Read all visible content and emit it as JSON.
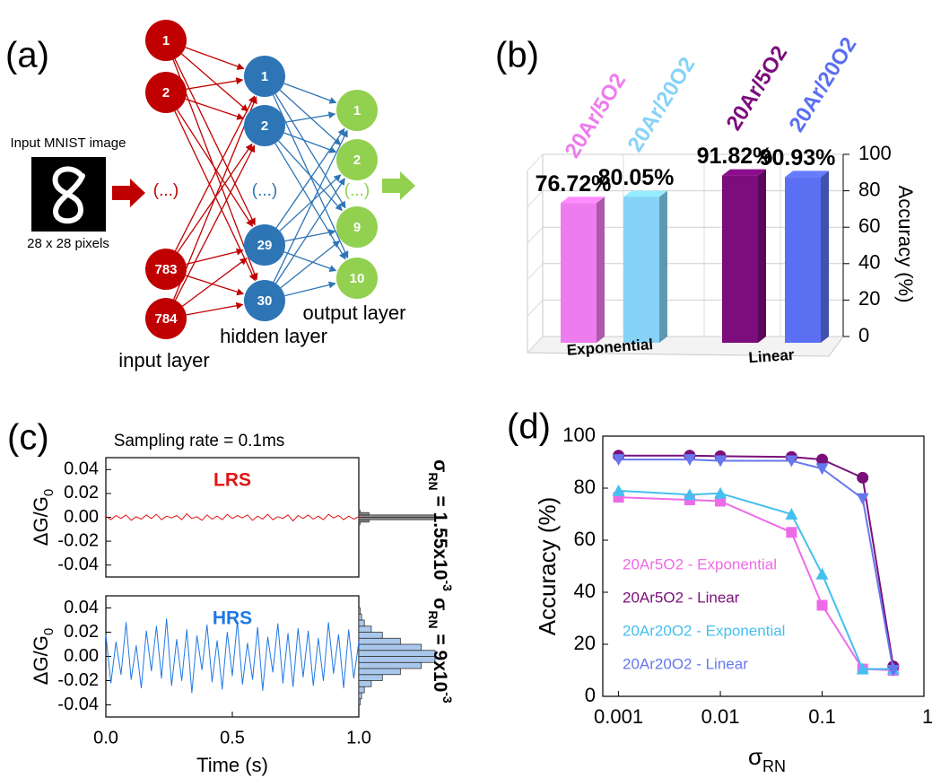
{
  "diagram": {
    "label": "(a)",
    "input_caption": "Input MNIST image",
    "pixel_caption": "28 x 28 pixels",
    "ellipsis": "(...)",
    "input_layer": {
      "name": "input layer",
      "nodes": [
        "1",
        "2",
        "783",
        "784"
      ]
    },
    "hidden_layer": {
      "name": "hidden layer",
      "nodes": [
        "1",
        "2",
        "29",
        "30"
      ]
    },
    "output_layer": {
      "name": "output layer",
      "nodes": [
        "1",
        "2",
        "9",
        "10"
      ]
    }
  },
  "chart_data": [
    {
      "type": "bar",
      "label": "(b)",
      "categories": [
        "20Ar/5O2",
        "20Ar/20O2",
        "20Ar/5O2",
        "20Ar/20O2"
      ],
      "colors": [
        "#ee7cee",
        "#86d3f7",
        "#7d0c7d",
        "#5b6ff2"
      ],
      "values": [
        76.72,
        80.05,
        91.82,
        90.93
      ],
      "value_labels": [
        "76.72%",
        "80.05%",
        "91.82%",
        "90.93%"
      ],
      "groups": [
        "Exponential",
        "Linear"
      ],
      "ylabel": "Accuracy (%)",
      "ylim": [
        0,
        100
      ],
      "yticks": [
        0,
        20,
        40,
        60,
        80,
        100
      ],
      "grid": true
    },
    {
      "type": "line",
      "label": "(c)",
      "subtitle": "Sampling rate = 0.1ms",
      "ylabel": {
        "text": "ΔG/G",
        "sub": "0"
      },
      "stat_label": {
        "symbol": "σ",
        "sub": "RN",
        "text": " = 1.55x10",
        "sup": "-3"
      },
      "x": [
        0,
        0.02,
        0.04,
        0.06,
        0.08,
        0.1,
        0.12,
        0.14,
        0.16,
        0.18,
        0.2,
        0.22,
        0.24,
        0.26,
        0.28,
        0.3,
        0.32,
        0.34,
        0.36,
        0.38,
        0.4,
        0.42,
        0.44,
        0.46,
        0.48,
        0.5,
        0.52,
        0.54,
        0.56,
        0.58,
        0.6,
        0.62,
        0.64,
        0.66,
        0.68,
        0.7,
        0.72,
        0.74,
        0.76,
        0.78,
        0.8,
        0.82,
        0.84,
        0.86,
        0.88,
        0.9,
        0.92,
        0.94,
        0.96,
        0.98,
        1
      ],
      "series": [
        {
          "name": "LRS",
          "color": "#e31414",
          "values": [
            0.001,
            -0.002,
            0.0015,
            -0.001,
            0.002,
            -0.0025,
            0.0005,
            -0.0015,
            0.002,
            -0.001,
            0.0025,
            -0.002,
            0.001,
            -0.0005,
            0.0015,
            -0.002,
            0.003,
            -0.001,
            0.0005,
            -0.0025,
            0.002,
            -0.0015,
            0.001,
            -0.002,
            0.0025,
            -0.001,
            0.0015,
            -0.0005,
            0.002,
            -0.0025,
            0.001,
            -0.0015,
            0.0025,
            -0.002,
            0.0005,
            -0.001,
            0.002,
            -0.003,
            0.0015,
            -0.001,
            0.002,
            -0.0015,
            0.001,
            -0.002,
            0.0025,
            -0.0005,
            0.0015,
            -0.002,
            0.001,
            -0.0015,
            0.0005
          ]
        }
      ],
      "hist": {
        "color": "#8a8a8a",
        "bins": [
          -0.008,
          -0.006,
          -0.004,
          -0.002,
          0,
          0.002,
          0.004,
          0.006,
          0.008
        ],
        "counts": [
          0,
          1,
          8,
          60,
          60,
          8,
          1,
          0
        ]
      },
      "xlim": [
        0,
        1
      ],
      "ylim": [
        -0.05,
        0.05
      ],
      "yticks": [
        -0.04,
        -0.02,
        {
          "value": 0,
          "label": "0.00"
        },
        0.02,
        0.04
      ]
    },
    {
      "type": "line",
      "ylabel": {
        "text": "ΔG/G",
        "sub": "0"
      },
      "stat_label": {
        "symbol": "σ",
        "sub": "RN",
        "text": " = 9x10",
        "sup": "-3"
      },
      "x": [
        0,
        0.02,
        0.04,
        0.06,
        0.08,
        0.1,
        0.12,
        0.14,
        0.16,
        0.18,
        0.2,
        0.22,
        0.24,
        0.26,
        0.28,
        0.3,
        0.32,
        0.34,
        0.36,
        0.38,
        0.4,
        0.42,
        0.44,
        0.46,
        0.48,
        0.5,
        0.52,
        0.54,
        0.56,
        0.58,
        0.6,
        0.62,
        0.64,
        0.66,
        0.68,
        0.7,
        0.72,
        0.74,
        0.76,
        0.78,
        0.8,
        0.82,
        0.84,
        0.86,
        0.88,
        0.9,
        0.92,
        0.94,
        0.96,
        0.98,
        1
      ],
      "series": [
        {
          "name": "HRS",
          "color": "#1f78e4",
          "values": [
            0.018,
            -0.022,
            0.012,
            -0.015,
            0.028,
            -0.019,
            0.009,
            -0.026,
            0.021,
            -0.012,
            0.025,
            -0.018,
            0.031,
            -0.024,
            0.014,
            -0.02,
            0.022,
            -0.03,
            0.017,
            -0.011,
            0.026,
            -0.021,
            0.013,
            -0.027,
            0.02,
            -0.016,
            0.029,
            -0.023,
            0.011,
            -0.019,
            0.024,
            -0.028,
            0.016,
            -0.013,
            0.027,
            -0.022,
            0.019,
            -0.025,
            0.023,
            -0.017,
            0.021,
            -0.024,
            0.015,
            -0.02,
            0.028,
            -0.014,
            0.018,
            -0.026,
            0.022,
            -0.018,
            0.012
          ]
        }
      ],
      "hist": {
        "color": "#a9c8ec",
        "bins": [
          -0.04,
          -0.035,
          -0.03,
          -0.025,
          -0.02,
          -0.015,
          -0.01,
          -0.005,
          0,
          0.005,
          0.01,
          0.015,
          0.02,
          0.025,
          0.03,
          0.035,
          0.04
        ],
        "counts": [
          1,
          2,
          4,
          9,
          17,
          30,
          45,
          55,
          55,
          45,
          30,
          17,
          9,
          4,
          2,
          1
        ]
      },
      "xlabel": "Time (s)",
      "xlim": [
        0,
        1
      ],
      "xticks": [
        {
          "value": 0,
          "label": "0.0"
        },
        {
          "value": 0.5,
          "label": "0.5"
        },
        {
          "value": 1,
          "label": "1.0"
        }
      ],
      "ylim": [
        -0.05,
        0.05
      ],
      "yticks": [
        -0.04,
        -0.02,
        {
          "value": 0,
          "label": "0.00"
        },
        0.02,
        0.04
      ]
    },
    {
      "type": "line",
      "label": "(d)",
      "x": [
        0.001,
        0.005,
        0.01,
        0.05,
        0.1,
        0.25,
        0.5
      ],
      "series": [
        {
          "name": "20Ar5O2 - Exponential",
          "color": "#ee6be8",
          "marker": "square",
          "values": [
            76.5,
            75.5,
            75,
            63,
            35,
            10.5,
            10
          ]
        },
        {
          "name": "20Ar5O2 - Linear",
          "color": "#7a0f7a",
          "marker": "circle",
          "values": [
            92.5,
            92.5,
            92.3,
            92,
            91,
            84,
            11.5
          ]
        },
        {
          "name": "20Ar20O2 - Exponential",
          "color": "#45c0ee",
          "marker": "triangle-up",
          "values": [
            79,
            77.5,
            78,
            70,
            47,
            10.5,
            10.5
          ]
        },
        {
          "name": "20Ar20O2 - Linear",
          "color": "#6677ee",
          "marker": "triangle-down",
          "values": [
            91,
            91,
            90.5,
            90.5,
            87.5,
            76,
            10
          ]
        }
      ],
      "xlabel": {
        "text": "σ",
        "sub": "RN"
      },
      "ylabel": "Accuracy (%)",
      "xscale": "log",
      "xlim": [
        0.0007,
        1
      ],
      "xticks": [
        0.001,
        0.01,
        0.1,
        1
      ],
      "ylim": [
        0,
        100
      ],
      "yticks": [
        0,
        20,
        40,
        60,
        80,
        100
      ],
      "legend": "lower left"
    }
  ]
}
